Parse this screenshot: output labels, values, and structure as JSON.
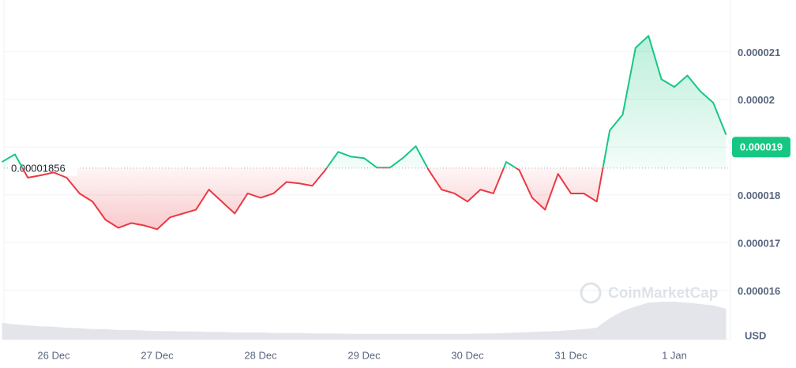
{
  "chart_data": {
    "type": "line",
    "categories": [
      null,
      null,
      null,
      null,
      "26 Dec",
      null,
      null,
      null,
      null,
      null,
      null,
      null,
      "27 Dec",
      null,
      null,
      null,
      null,
      null,
      null,
      null,
      "28 Dec",
      null,
      null,
      null,
      null,
      null,
      null,
      null,
      "29 Dec",
      null,
      null,
      null,
      null,
      null,
      null,
      null,
      "30 Dec",
      null,
      null,
      null,
      null,
      null,
      null,
      null,
      "31 Dec",
      null,
      null,
      null,
      null,
      null,
      null,
      null,
      "1 Jan",
      null,
      null,
      null,
      null
    ],
    "values": [
      1.869e-05,
      1.885e-05,
      1.836e-05,
      1.841e-05,
      1.847e-05,
      1.836e-05,
      1.803e-05,
      1.786e-05,
      1.748e-05,
      1.731e-05,
      1.741e-05,
      1.736e-05,
      1.728e-05,
      1.753e-05,
      1.761e-05,
      1.769e-05,
      1.811e-05,
      1.786e-05,
      1.761e-05,
      1.803e-05,
      1.794e-05,
      1.803e-05,
      1.827e-05,
      1.824e-05,
      1.819e-05,
      1.852e-05,
      1.89e-05,
      1.88e-05,
      1.877e-05,
      1.857e-05,
      1.857e-05,
      1.877e-05,
      1.902e-05,
      1.852e-05,
      1.811e-05,
      1.803e-05,
      1.786e-05,
      1.811e-05,
      1.803e-05,
      1.869e-05,
      1.852e-05,
      1.794e-05,
      1.769e-05,
      1.844e-05,
      1.803e-05,
      1.803e-05,
      1.786e-05,
      1.935e-05,
      1.968e-05,
      2.108e-05,
      2.133e-05,
      2.042e-05,
      2.026e-05,
      2.05e-05,
      2.017e-05,
      1.993e-05,
      1.926e-05
    ],
    "volume": {
      "axis": "y2",
      "color": "#e3e5ea",
      "values": [
        35,
        32,
        30,
        28,
        27,
        25,
        24,
        22,
        22,
        20,
        20,
        19,
        18,
        18,
        17,
        17,
        16,
        16,
        15,
        15,
        15,
        14,
        14,
        14,
        13,
        13,
        13,
        12,
        12,
        12,
        12,
        12,
        12,
        12,
        12,
        12,
        12,
        13,
        13,
        14,
        15,
        16,
        17,
        18,
        20,
        22,
        25,
        45,
        60,
        70,
        78,
        80,
        80,
        78,
        75,
        72,
        65
      ]
    },
    "y2lim": [
      0,
      100
    ],
    "ylim": [
      1.55e-05,
      2.208e-05
    ],
    "yticks": [
      1.6e-05,
      1.7e-05,
      1.8e-05,
      1.9e-05,
      2e-05,
      2.1e-05
    ],
    "yticks_labels": null,
    "baseline": 1.856e-05,
    "current_price": 1.9e-05,
    "up_color": "#16c784",
    "down_color": "#ea3943",
    "grid": true,
    "currency_label": "USD",
    "watermark": "CoinMarketCap"
  }
}
